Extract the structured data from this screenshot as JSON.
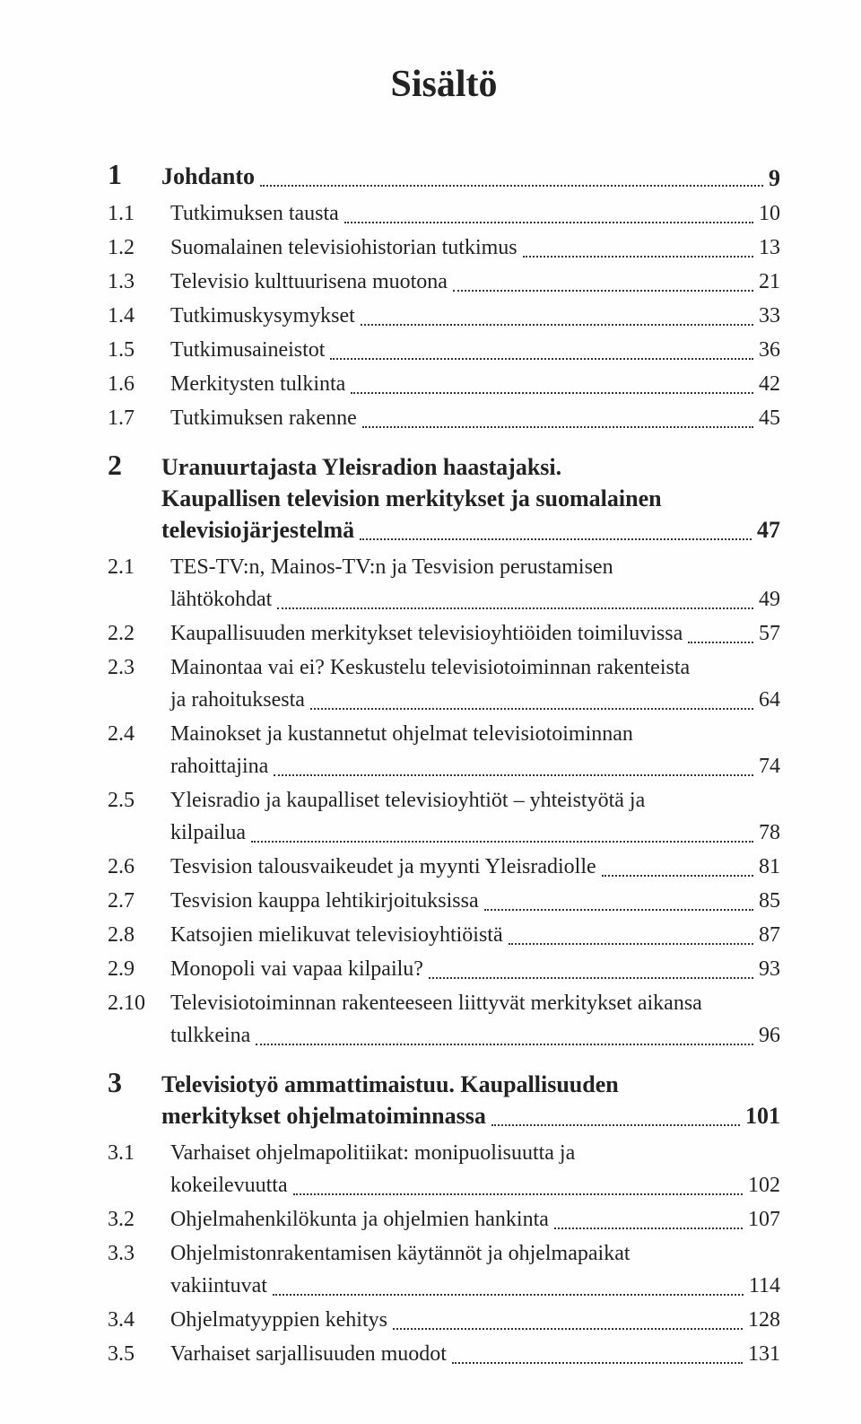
{
  "title": "Sisältö",
  "colors": {
    "background": "#fefefe",
    "text": "#222222",
    "leader": "#333333"
  },
  "typography": {
    "title_fontsize": 42,
    "chapter_num_fontsize": 32,
    "chapter_title_fontsize": 26,
    "entry_fontsize": 24,
    "font_family": "Georgia, Times New Roman, serif"
  },
  "chapters": [
    {
      "num": "1",
      "title_lines": [
        "Johdanto"
      ],
      "page": "9",
      "entries": [
        {
          "num": "1.1",
          "text_lines": [
            "Tutkimuksen tausta"
          ],
          "page": "10"
        },
        {
          "num": "1.2",
          "text_lines": [
            "Suomalainen televisiohistorian tutkimus"
          ],
          "page": "13"
        },
        {
          "num": "1.3",
          "text_lines": [
            "Televisio kulttuurisena muotona"
          ],
          "page": "21"
        },
        {
          "num": "1.4",
          "text_lines": [
            "Tutkimuskysymykset"
          ],
          "page": "33"
        },
        {
          "num": "1.5",
          "text_lines": [
            "Tutkimusaineistot"
          ],
          "page": "36"
        },
        {
          "num": "1.6",
          "text_lines": [
            "Merkitysten tulkinta"
          ],
          "page": "42"
        },
        {
          "num": "1.7",
          "text_lines": [
            "Tutkimuksen rakenne"
          ],
          "page": "45"
        }
      ]
    },
    {
      "num": "2",
      "title_lines": [
        "Uranuurtajasta Yleisradion haastajaksi.",
        "Kaupallisen television merkitykset ja suomalainen",
        "televisiojärjestelmä"
      ],
      "page": "47",
      "entries": [
        {
          "num": "2.1",
          "text_lines": [
            "TES-TV:n, Mainos-TV:n ja Tesvision perustamisen",
            "lähtökohdat"
          ],
          "page": "49"
        },
        {
          "num": "2.2",
          "text_lines": [
            "Kaupallisuuden merkitykset televisioyhtiöiden toimiluvissa"
          ],
          "page": "57"
        },
        {
          "num": "2.3",
          "text_lines": [
            "Mainontaa vai ei? Keskustelu televisiotoiminnan rakenteista",
            "ja rahoituksesta"
          ],
          "page": "64"
        },
        {
          "num": "2.4",
          "text_lines": [
            "Mainokset ja kustannetut ohjelmat televisiotoiminnan",
            "rahoittajina"
          ],
          "page": "74"
        },
        {
          "num": "2.5",
          "text_lines": [
            "Yleisradio ja kaupalliset televisioyhtiöt – yhteistyötä ja",
            "kilpailua"
          ],
          "page": "78"
        },
        {
          "num": "2.6",
          "text_lines": [
            "Tesvision talousvaikeudet ja myynti Yleisradiolle"
          ],
          "page": "81"
        },
        {
          "num": "2.7",
          "text_lines": [
            "Tesvision kauppa lehtikirjoituksissa"
          ],
          "page": "85"
        },
        {
          "num": "2.8",
          "text_lines": [
            "Katsojien mielikuvat televisioyhtiöistä"
          ],
          "page": "87"
        },
        {
          "num": "2.9",
          "text_lines": [
            "Monopoli vai vapaa kilpailu?"
          ],
          "page": "93"
        },
        {
          "num": "2.10",
          "text_lines": [
            "Televisiotoiminnan rakenteeseen liittyvät merkitykset aikansa",
            "tulkkeina"
          ],
          "page": "96"
        }
      ]
    },
    {
      "num": "3",
      "title_lines": [
        "Televisiotyö ammattimaistuu. Kaupallisuuden",
        "merkitykset ohjelmatoiminnassa"
      ],
      "page": "101",
      "entries": [
        {
          "num": "3.1",
          "text_lines": [
            "Varhaiset ohjelmapolitiikat: monipuolisuutta ja",
            "kokeilevuutta"
          ],
          "page": "102"
        },
        {
          "num": "3.2",
          "text_lines": [
            "Ohjelmahenkilökunta ja ohjelmien hankinta"
          ],
          "page": "107"
        },
        {
          "num": "3.3",
          "text_lines": [
            "Ohjelmistonrakentamisen käytännöt ja ohjelmapaikat",
            "vakiintuvat"
          ],
          "page": "114"
        },
        {
          "num": "3.4",
          "text_lines": [
            "Ohjelmatyyppien kehitys"
          ],
          "page": "128"
        },
        {
          "num": "3.5",
          "text_lines": [
            "Varhaiset sarjallisuuden muodot"
          ],
          "page": "131"
        }
      ]
    }
  ]
}
